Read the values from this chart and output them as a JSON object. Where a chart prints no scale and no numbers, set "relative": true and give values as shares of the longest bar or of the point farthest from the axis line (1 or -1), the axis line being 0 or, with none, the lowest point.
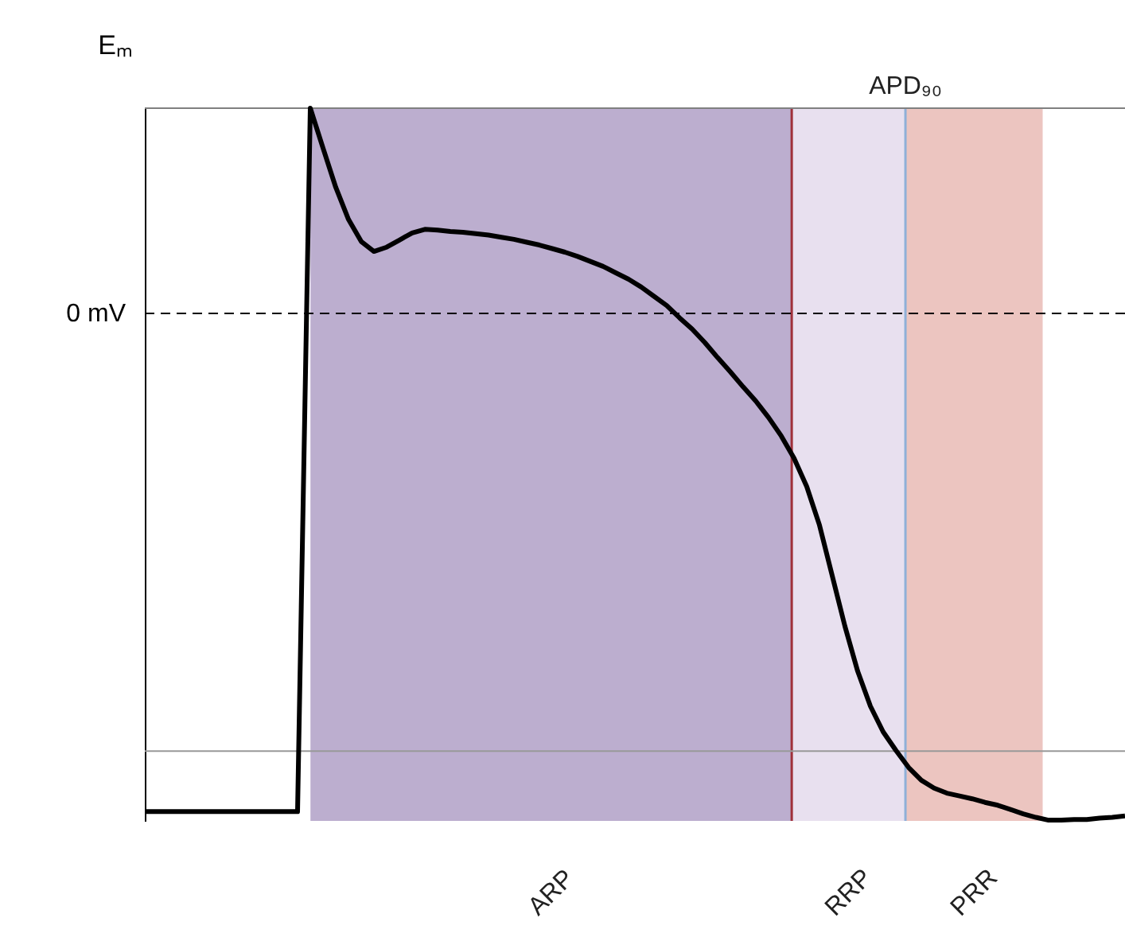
{
  "chart_data": {
    "type": "line",
    "ylabel": "Eₘ",
    "relative": true,
    "categories": [
      null,
      null,
      null,
      null,
      null,
      null,
      null,
      null,
      null,
      null,
      null,
      null,
      null,
      null,
      null,
      null,
      null,
      null,
      null,
      null,
      null,
      null,
      null,
      null,
      null,
      null,
      null,
      null,
      null,
      null,
      null,
      null,
      null,
      null,
      null,
      null,
      null,
      null,
      null,
      null,
      null,
      null,
      null,
      null,
      null,
      null,
      null,
      null,
      null,
      null,
      null,
      null,
      null,
      null,
      null,
      null,
      null,
      null,
      null,
      null,
      null,
      null,
      null,
      null,
      null,
      null,
      null,
      null,
      null,
      null,
      null,
      null,
      null,
      null,
      null,
      null,
      null,
      null
    ],
    "series": [
      {
        "color": "#000000",
        "line_style": "solid",
        "values": [
          0.013,
          0.013,
          0.013,
          0.013,
          0.013,
          0.013,
          0.013,
          0.013,
          0.013,
          0.013,
          0.013,
          0.013,
          0.013,
          1,
          0.944,
          0.889,
          0.844,
          0.813,
          0.799,
          0.805,
          0.815,
          0.825,
          0.83,
          0.829,
          0.827,
          0.826,
          0.824,
          0.822,
          0.819,
          0.816,
          0.812,
          0.808,
          0.803,
          0.798,
          0.792,
          0.785,
          0.778,
          0.769,
          0.76,
          0.749,
          0.736,
          0.723,
          0.706,
          0.69,
          0.671,
          0.65,
          0.63,
          0.609,
          0.589,
          0.566,
          0.54,
          0.509,
          0.469,
          0.415,
          0.344,
          0.273,
          0.21,
          0.161,
          0.125,
          0.099,
          0.075,
          0.057,
          0.046,
          0.039,
          0.035,
          0.031,
          0.026,
          0.022,
          0.016,
          0.01,
          0.005,
          0.001,
          0.001,
          0.002,
          0.002,
          0.004,
          0.005,
          0.007
        ]
      }
    ],
    "ref_lines": [
      {
        "axis": "y",
        "value": 1,
        "color": "#808080",
        "line_style": "solid"
      },
      {
        "axis": "y",
        "value": 0.712,
        "label": "0 mV",
        "color": "#000000",
        "line_style": "dashed"
      },
      {
        "axis": "y",
        "value": 0.098,
        "color": "#999999",
        "line_style": "solid"
      }
    ],
    "annotations": [
      "APD₉₀",
      "ARP",
      "RRP",
      "PRR"
    ]
  }
}
